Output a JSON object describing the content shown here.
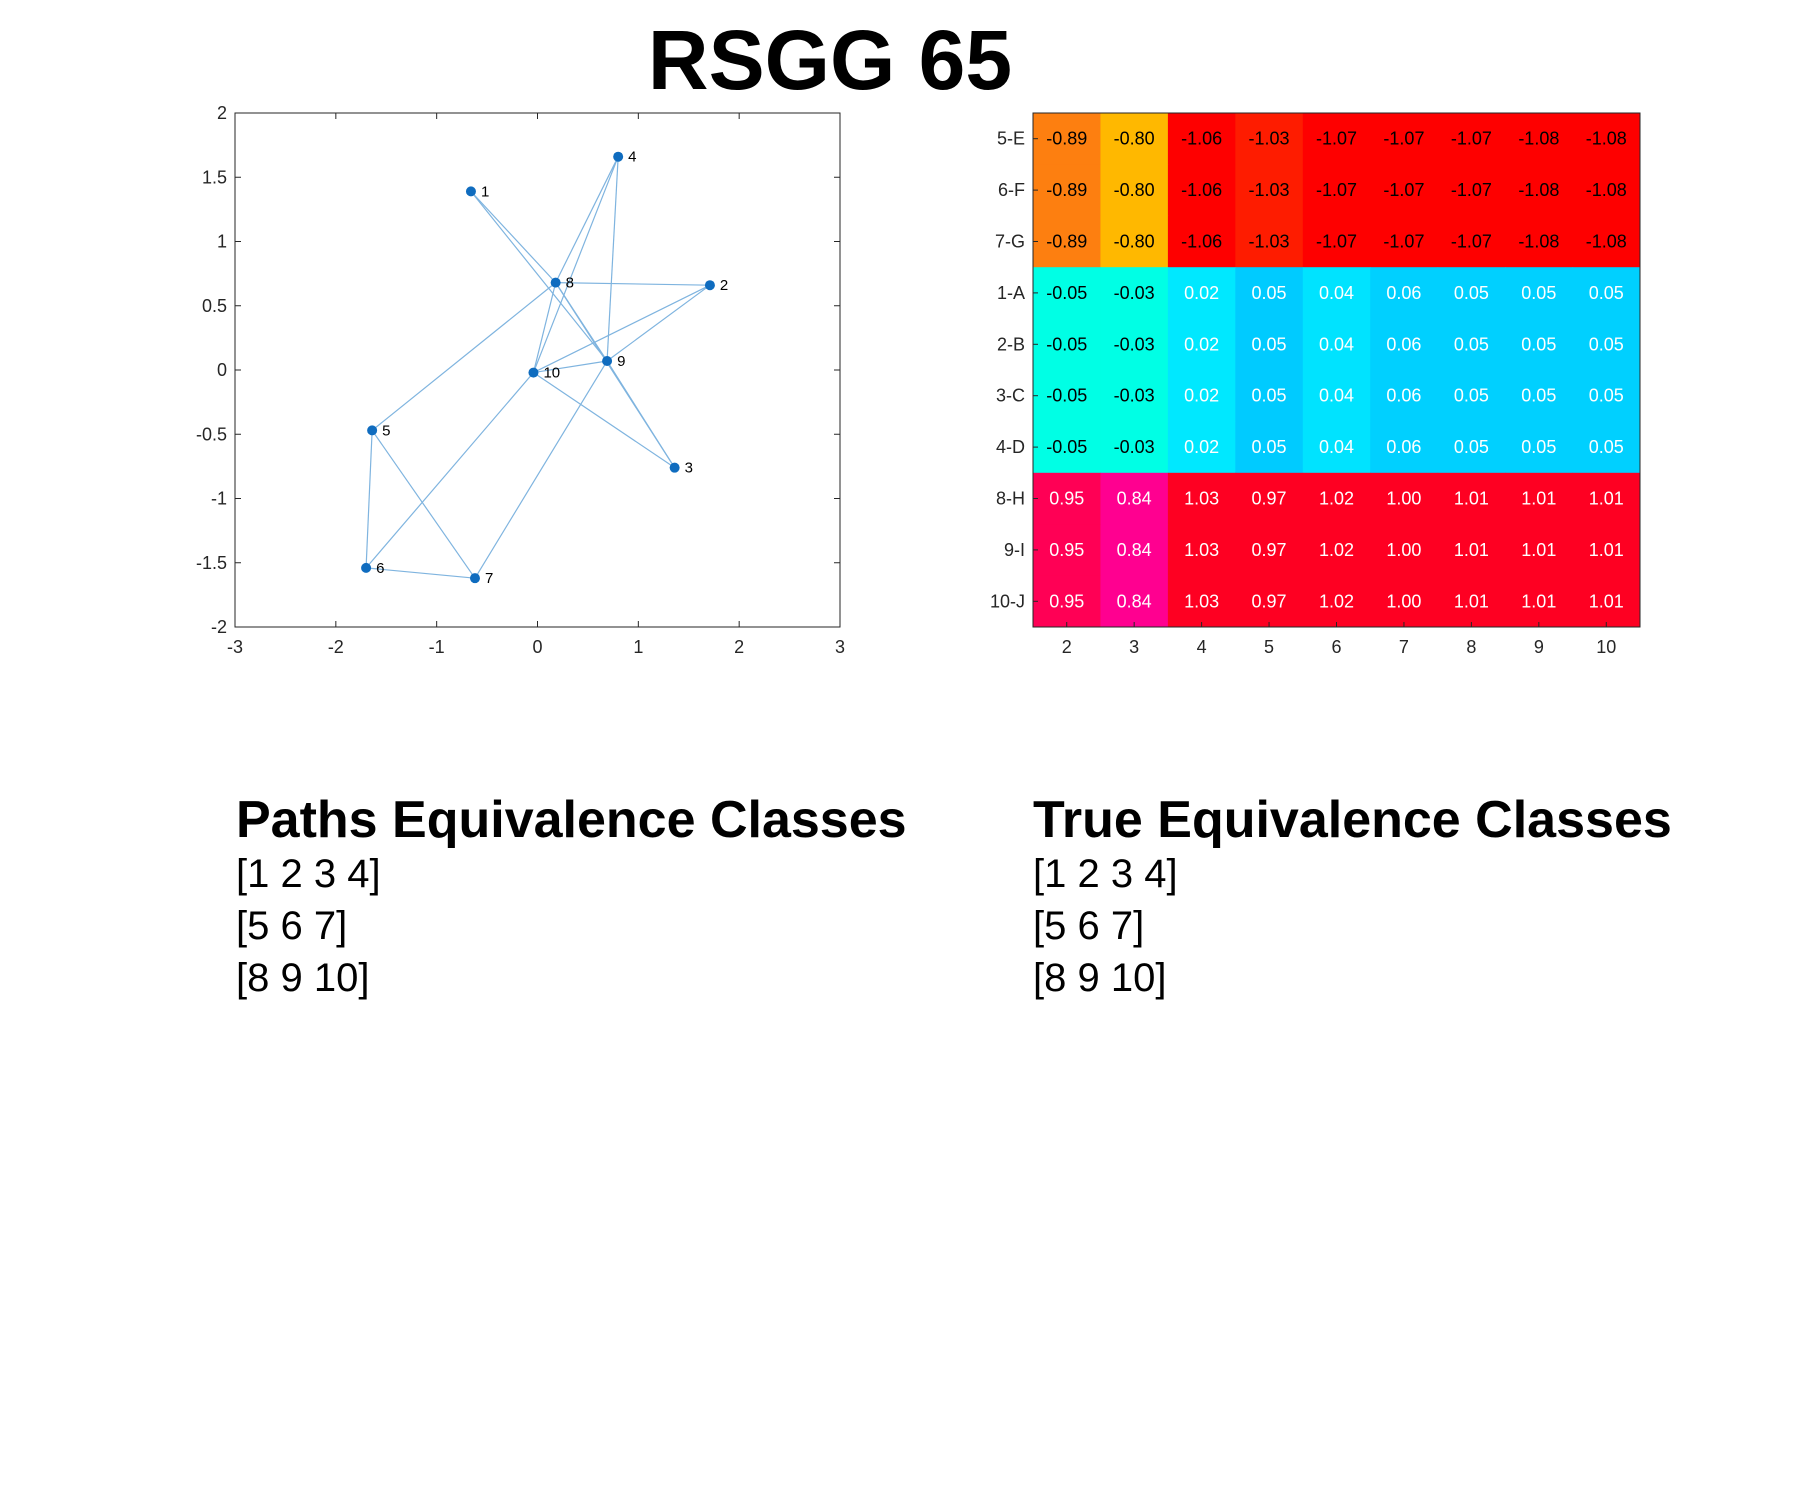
{
  "title": "RSGG 65",
  "chart_data": [
    {
      "type": "scatter",
      "xlim": [
        -3,
        3
      ],
      "ylim": [
        -2,
        2
      ],
      "xticks": [
        "-3",
        "-2",
        "-1",
        "0",
        "1",
        "2",
        "3"
      ],
      "yticks": [
        "2",
        "1.5",
        "1",
        "0.5",
        "0",
        "-0.5",
        "-1",
        "-1.5",
        "-2"
      ],
      "grid": false,
      "nodes": [
        {
          "label": "1",
          "x": -0.66,
          "y": 1.39
        },
        {
          "label": "2",
          "x": 1.71,
          "y": 0.66
        },
        {
          "label": "3",
          "x": 1.36,
          "y": -0.76
        },
        {
          "label": "4",
          "x": 0.8,
          "y": 1.66
        },
        {
          "label": "5",
          "x": -1.64,
          "y": -0.47
        },
        {
          "label": "6",
          "x": -1.7,
          "y": -1.54
        },
        {
          "label": "7",
          "x": -0.62,
          "y": -1.62
        },
        {
          "label": "8",
          "x": 0.18,
          "y": 0.68
        },
        {
          "label": "9",
          "x": 0.69,
          "y": 0.07
        },
        {
          "label": "10",
          "x": -0.04,
          "y": -0.02
        }
      ],
      "edges": [
        [
          1,
          8
        ],
        [
          1,
          9
        ],
        [
          4,
          8
        ],
        [
          4,
          9
        ],
        [
          4,
          10
        ],
        [
          2,
          8
        ],
        [
          2,
          9
        ],
        [
          2,
          10
        ],
        [
          3,
          8
        ],
        [
          3,
          9
        ],
        [
          3,
          10
        ],
        [
          5,
          8
        ],
        [
          5,
          7
        ],
        [
          5,
          6
        ],
        [
          6,
          7
        ],
        [
          6,
          10
        ],
        [
          7,
          9
        ],
        [
          8,
          9
        ],
        [
          8,
          10
        ],
        [
          9,
          10
        ]
      ],
      "colors": {
        "node": "#0f6cbf",
        "edge": "#7fb4df"
      }
    },
    {
      "type": "heatmap",
      "xticks": [
        "2",
        "3",
        "4",
        "5",
        "6",
        "7",
        "8",
        "9",
        "10"
      ],
      "yticks": [
        "5-E",
        "6-F",
        "7-G",
        "1-A",
        "2-B",
        "3-C",
        "4-D",
        "8-H",
        "9-I",
        "10-J"
      ],
      "values": [
        [
          "-0.89",
          "-0.80",
          "-1.06",
          "-1.03",
          "-1.07",
          "-1.07",
          "-1.07",
          "-1.08",
          "-1.08"
        ],
        [
          "-0.89",
          "-0.80",
          "-1.06",
          "-1.03",
          "-1.07",
          "-1.07",
          "-1.07",
          "-1.08",
          "-1.08"
        ],
        [
          "-0.89",
          "-0.80",
          "-1.06",
          "-1.03",
          "-1.07",
          "-1.07",
          "-1.07",
          "-1.08",
          "-1.08"
        ],
        [
          "-0.05",
          "-0.03",
          "0.02",
          "0.05",
          "0.04",
          "0.06",
          "0.05",
          "0.05",
          "0.05"
        ],
        [
          "-0.05",
          "-0.03",
          "0.02",
          "0.05",
          "0.04",
          "0.06",
          "0.05",
          "0.05",
          "0.05"
        ],
        [
          "-0.05",
          "-0.03",
          "0.02",
          "0.05",
          "0.04",
          "0.06",
          "0.05",
          "0.05",
          "0.05"
        ],
        [
          "-0.05",
          "-0.03",
          "0.02",
          "0.05",
          "0.04",
          "0.06",
          "0.05",
          "0.05",
          "0.05"
        ],
        [
          "0.95",
          "0.84",
          "1.03",
          "0.97",
          "1.02",
          "1.00",
          "1.01",
          "1.01",
          "1.01"
        ],
        [
          "0.95",
          "0.84",
          "1.03",
          "0.97",
          "1.02",
          "1.00",
          "1.01",
          "1.01",
          "1.01"
        ],
        [
          "0.95",
          "0.84",
          "1.03",
          "0.97",
          "1.02",
          "1.00",
          "1.01",
          "1.01",
          "1.01"
        ]
      ],
      "cell_colors": [
        [
          "#fd7f10",
          "#ffb800",
          "#fe0000",
          "#fe1c00",
          "#fe0000",
          "#fe0000",
          "#fe0000",
          "#fe0000",
          "#fe0000"
        ],
        [
          "#fd7f10",
          "#ffb800",
          "#fe0000",
          "#fe1c00",
          "#fe0000",
          "#fe0000",
          "#fe0000",
          "#fe0000",
          "#fe0000"
        ],
        [
          "#fd7f10",
          "#ffb800",
          "#fe0000",
          "#fe1c00",
          "#fe0000",
          "#fe0000",
          "#fe0000",
          "#fe0000",
          "#fe0000"
        ],
        [
          "#00ffe5",
          "#00ffe5",
          "#00e8ff",
          "#00cbff",
          "#00e3ff",
          "#00d0ff",
          "#00d0ff",
          "#00d0ff",
          "#00d0ff"
        ],
        [
          "#00ffe5",
          "#00ffe5",
          "#00e8ff",
          "#00cbff",
          "#00e3ff",
          "#00d0ff",
          "#00d0ff",
          "#00d0ff",
          "#00d0ff"
        ],
        [
          "#00ffe5",
          "#00ffe5",
          "#00e8ff",
          "#00cbff",
          "#00e3ff",
          "#00d0ff",
          "#00d0ff",
          "#00d0ff",
          "#00d0ff"
        ],
        [
          "#00ffe5",
          "#00ffe5",
          "#00e8ff",
          "#00cbff",
          "#00e3ff",
          "#00d0ff",
          "#00d0ff",
          "#00d0ff",
          "#00d0ff"
        ],
        [
          "#ff0055",
          "#ff0090",
          "#fe0022",
          "#fe0022",
          "#fe0022",
          "#fe0022",
          "#fe0022",
          "#fe0022",
          "#fe0022"
        ],
        [
          "#ff0055",
          "#ff0090",
          "#fe0022",
          "#fe0022",
          "#fe0022",
          "#fe0022",
          "#fe0022",
          "#fe0022",
          "#fe0022"
        ],
        [
          "#ff0055",
          "#ff0090",
          "#fe0022",
          "#fe0022",
          "#fe0022",
          "#fe0022",
          "#fe0022",
          "#fe0022",
          "#fe0022"
        ]
      ],
      "text_colors": [
        [
          "#000000",
          "#000000",
          "#000000",
          "#000000",
          "#000000",
          "#000000",
          "#000000",
          "#000000",
          "#000000"
        ],
        [
          "#000000",
          "#000000",
          "#000000",
          "#000000",
          "#000000",
          "#000000",
          "#000000",
          "#000000",
          "#000000"
        ],
        [
          "#000000",
          "#000000",
          "#000000",
          "#000000",
          "#000000",
          "#000000",
          "#000000",
          "#000000",
          "#000000"
        ],
        [
          "#000000",
          "#000000",
          "#ffffff",
          "#ffffff",
          "#ffffff",
          "#ffffff",
          "#ffffff",
          "#ffffff",
          "#ffffff"
        ],
        [
          "#000000",
          "#000000",
          "#ffffff",
          "#ffffff",
          "#ffffff",
          "#ffffff",
          "#ffffff",
          "#ffffff",
          "#ffffff"
        ],
        [
          "#000000",
          "#000000",
          "#ffffff",
          "#ffffff",
          "#ffffff",
          "#ffffff",
          "#ffffff",
          "#ffffff",
          "#ffffff"
        ],
        [
          "#000000",
          "#000000",
          "#ffffff",
          "#ffffff",
          "#ffffff",
          "#ffffff",
          "#ffffff",
          "#ffffff",
          "#ffffff"
        ],
        [
          "#ffffff",
          "#ffffff",
          "#ffffff",
          "#ffffff",
          "#ffffff",
          "#ffffff",
          "#ffffff",
          "#ffffff",
          "#ffffff"
        ],
        [
          "#ffffff",
          "#ffffff",
          "#ffffff",
          "#ffffff",
          "#ffffff",
          "#ffffff",
          "#ffffff",
          "#ffffff",
          "#ffffff"
        ],
        [
          "#ffffff",
          "#ffffff",
          "#ffffff",
          "#ffffff",
          "#ffffff",
          "#ffffff",
          "#ffffff",
          "#ffffff",
          "#ffffff"
        ]
      ]
    }
  ],
  "paths_classes": {
    "heading": "Paths Equivalence Classes",
    "items": [
      "[1 2 3 4]",
      "[5 6 7]",
      "[8 9 10]"
    ]
  },
  "true_classes": {
    "heading": "True Equivalence Classes",
    "items": [
      "[1 2 3 4]",
      "[5 6 7]",
      "[8 9 10]"
    ]
  }
}
